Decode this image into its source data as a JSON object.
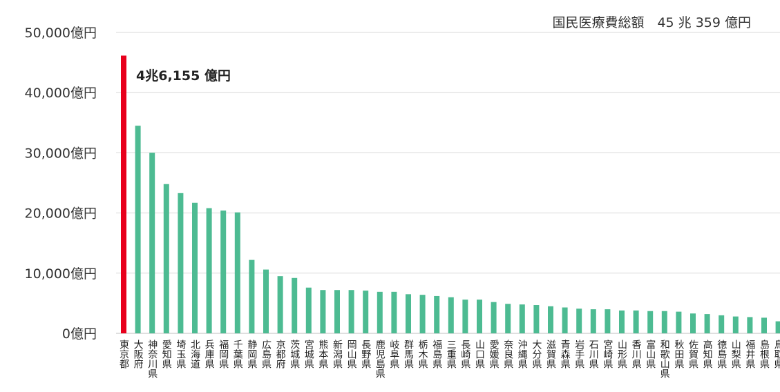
{
  "total_label": "国民医療費総額　45 兆 359 億円",
  "chart_data": {
    "type": "bar",
    "ylim": [
      0,
      50000
    ],
    "yticks": [
      "0億円",
      "10,000億円",
      "20,000億円",
      "30,000億円",
      "40,000億円",
      "50,000億円"
    ],
    "grid": true,
    "highlight_color": "#e8001c",
    "bar_color": "#4dbb92",
    "highlight_label": "4兆6,155 億円",
    "categories": [
      "東京都",
      "大阪府",
      "神奈川県",
      "愛知県",
      "埼玉県",
      "北海道",
      "兵庫県",
      "福岡県",
      "千葉県",
      "静岡県",
      "広島県",
      "京都府",
      "茨城県",
      "宮城県",
      "熊本県",
      "新潟県",
      "岡山県",
      "長野県",
      "鹿児島県",
      "岐阜県",
      "群馬県",
      "栃木県",
      "福島県",
      "三重県",
      "長崎県",
      "山口県",
      "愛媛県",
      "奈良県",
      "沖縄県",
      "大分県",
      "滋賀県",
      "青森県",
      "岩手県",
      "石川県",
      "宮崎県",
      "山形県",
      "香川県",
      "富山県",
      "和歌山県",
      "秋田県",
      "佐賀県",
      "高知県",
      "徳島県",
      "山梨県",
      "福井県",
      "島根県",
      "鳥取県"
    ],
    "values": [
      46155,
      34500,
      30000,
      24800,
      23300,
      21700,
      20800,
      20400,
      20100,
      12200,
      10600,
      9500,
      9200,
      7600,
      7200,
      7200,
      7200,
      7100,
      6900,
      6900,
      6500,
      6400,
      6200,
      6000,
      5600,
      5600,
      5200,
      4900,
      4800,
      4700,
      4500,
      4300,
      4100,
      4000,
      4000,
      3800,
      3800,
      3700,
      3700,
      3600,
      3300,
      3200,
      3000,
      2800,
      2700,
      2600,
      2000
    ]
  }
}
